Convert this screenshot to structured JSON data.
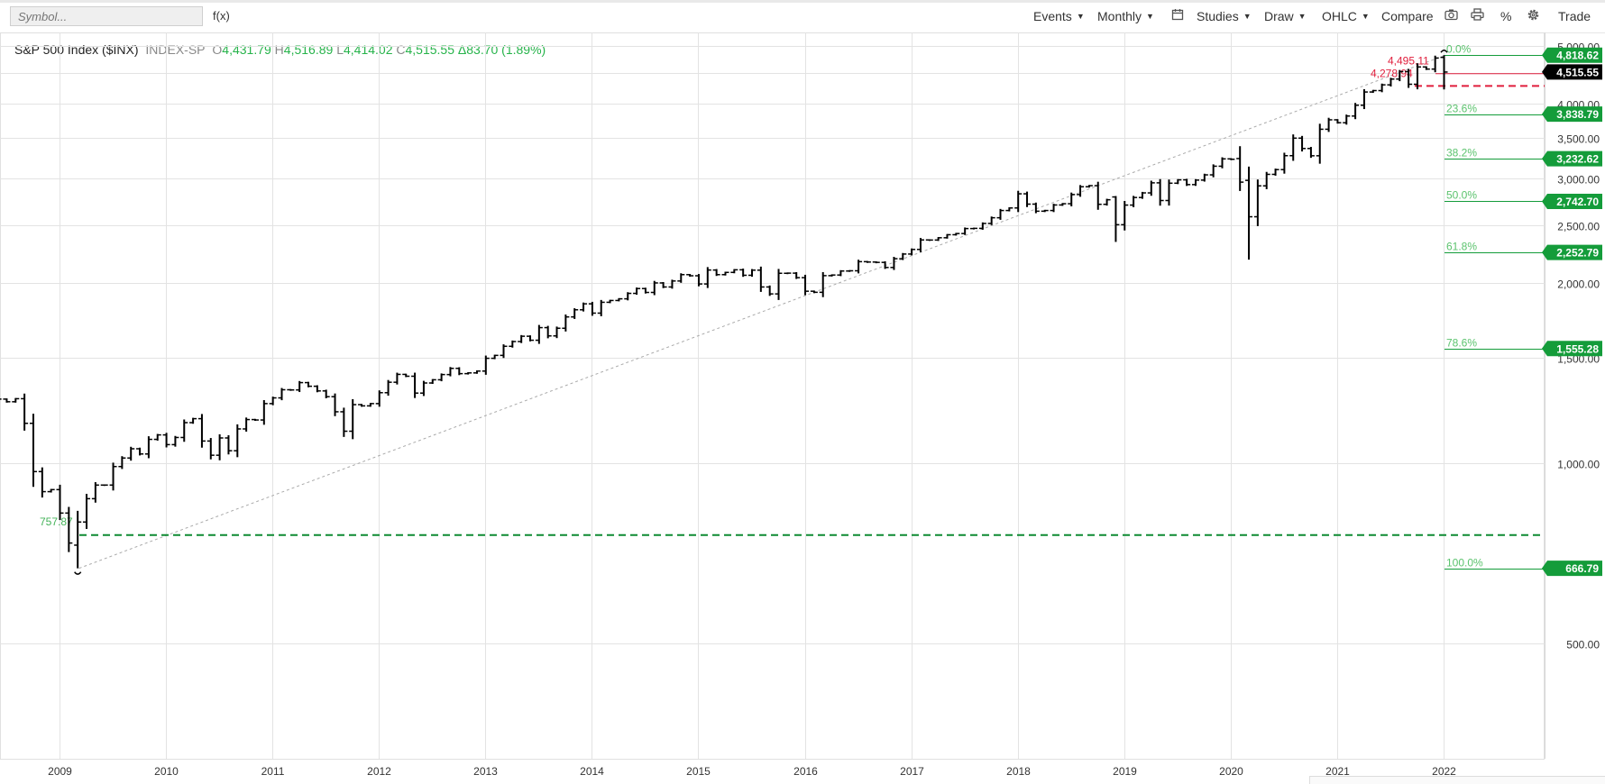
{
  "toolbar": {
    "symbol_placeholder": "Symbol...",
    "fx_label": "f(x)",
    "events_label": "Events",
    "period_label": "Monthly",
    "calendar_icon": "calendar-icon",
    "studies_label": "Studies",
    "draw_label": "Draw",
    "chart_type_label": "OHLC",
    "compare_label": "Compare",
    "camera_icon": "camera-icon",
    "print_icon": "print-icon",
    "percent_label": "%",
    "settings_icon": "gear-icon",
    "trade_label": "Trade"
  },
  "legend": {
    "name": "S&P 500 Index ($INX)",
    "exchange": "INDEX-SP",
    "open_label": "O",
    "open": "4,431.79",
    "high_label": "H",
    "high": "4,516.89",
    "low_label": "L",
    "low": "4,414.02",
    "close_label": "C",
    "close": "4,515.55",
    "change": "Δ83.70 (1.89%)"
  },
  "colors": {
    "up_text": "#26b34a",
    "fib_green": "#149c3a",
    "fib_red": "#e01e3c",
    "candle": "#000000",
    "grid": "#e3e3e3"
  },
  "chart_data": {
    "type": "ohlc",
    "period": "monthly",
    "ylim": [
      320,
      5260
    ],
    "y_ticks": [
      {
        "value": 500,
        "label": "500.00"
      },
      {
        "value": 1000,
        "label": "1,000.00"
      },
      {
        "value": 1500,
        "label": "1,500.00"
      },
      {
        "value": 2000,
        "label": "2,000.00"
      },
      {
        "value": 2500,
        "label": "2,500.00"
      },
      {
        "value": 3000,
        "label": "3,000.00"
      },
      {
        "value": 3500,
        "label": "3,500.00"
      },
      {
        "value": 4000,
        "label": "4,000.00"
      },
      {
        "value": 4500,
        "label": ""
      },
      {
        "value": 5000,
        "label": "5,000.00"
      }
    ],
    "x_ticks": [
      {
        "date": 2009.0,
        "label": "2009"
      },
      {
        "date": 2010.0,
        "label": "2010"
      },
      {
        "date": 2011.0,
        "label": "2011"
      },
      {
        "date": 2012.0,
        "label": "2012"
      },
      {
        "date": 2013.0,
        "label": "2013"
      },
      {
        "date": 2014.0,
        "label": "2014"
      },
      {
        "date": 2015.0,
        "label": "2015"
      },
      {
        "date": 2016.0,
        "label": "2016"
      },
      {
        "date": 2017.0,
        "label": "2017"
      },
      {
        "date": 2018.0,
        "label": "2018"
      },
      {
        "date": 2019.0,
        "label": "2019"
      },
      {
        "date": 2020.0,
        "label": "2020"
      },
      {
        "date": 2021.0,
        "label": "2021"
      },
      {
        "date": 2022.0,
        "label": "2022"
      }
    ],
    "closes": [
      {
        "date": "2008-05",
        "close": 1400
      },
      {
        "date": "2008-06",
        "close": 1280
      },
      {
        "date": "2008-07",
        "close": 1267
      },
      {
        "date": "2008-08",
        "close": 1282
      },
      {
        "date": "2008-09",
        "close": 1166
      },
      {
        "date": "2008-10",
        "close": 968
      },
      {
        "date": "2008-11",
        "close": 896
      },
      {
        "date": "2008-12",
        "close": 903
      },
      {
        "date": "2009-01",
        "close": 825
      },
      {
        "date": "2009-02",
        "close": 735
      },
      {
        "date": "2009-03",
        "close": 797
      },
      {
        "date": "2009-04",
        "close": 872
      },
      {
        "date": "2009-05",
        "close": 919
      },
      {
        "date": "2009-06",
        "close": 919
      },
      {
        "date": "2009-07",
        "close": 987
      },
      {
        "date": "2009-08",
        "close": 1020
      },
      {
        "date": "2009-09",
        "close": 1057
      },
      {
        "date": "2009-10",
        "close": 1036
      },
      {
        "date": "2009-11",
        "close": 1096
      },
      {
        "date": "2009-12",
        "close": 1115
      },
      {
        "date": "2010-01",
        "close": 1074
      },
      {
        "date": "2010-02",
        "close": 1104
      },
      {
        "date": "2010-03",
        "close": 1169
      },
      {
        "date": "2010-04",
        "close": 1187
      },
      {
        "date": "2010-05",
        "close": 1089
      },
      {
        "date": "2010-06",
        "close": 1031
      },
      {
        "date": "2010-07",
        "close": 1102
      },
      {
        "date": "2010-08",
        "close": 1049
      },
      {
        "date": "2010-09",
        "close": 1141
      },
      {
        "date": "2010-10",
        "close": 1183
      },
      {
        "date": "2010-11",
        "close": 1181
      },
      {
        "date": "2010-12",
        "close": 1258
      },
      {
        "date": "2011-01",
        "close": 1286
      },
      {
        "date": "2011-02",
        "close": 1327
      },
      {
        "date": "2011-03",
        "close": 1326
      },
      {
        "date": "2011-04",
        "close": 1364
      },
      {
        "date": "2011-05",
        "close": 1345
      },
      {
        "date": "2011-06",
        "close": 1321
      },
      {
        "date": "2011-07",
        "close": 1292
      },
      {
        "date": "2011-08",
        "close": 1219
      },
      {
        "date": "2011-09",
        "close": 1131
      },
      {
        "date": "2011-10",
        "close": 1253
      },
      {
        "date": "2011-11",
        "close": 1247
      },
      {
        "date": "2011-12",
        "close": 1258
      },
      {
        "date": "2012-01",
        "close": 1312
      },
      {
        "date": "2012-02",
        "close": 1366
      },
      {
        "date": "2012-03",
        "close": 1408
      },
      {
        "date": "2012-04",
        "close": 1398
      },
      {
        "date": "2012-05",
        "close": 1310
      },
      {
        "date": "2012-06",
        "close": 1362
      },
      {
        "date": "2012-07",
        "close": 1379
      },
      {
        "date": "2012-08",
        "close": 1407
      },
      {
        "date": "2012-09",
        "close": 1441
      },
      {
        "date": "2012-10",
        "close": 1412
      },
      {
        "date": "2012-11",
        "close": 1416
      },
      {
        "date": "2012-12",
        "close": 1426
      },
      {
        "date": "2013-01",
        "close": 1498
      },
      {
        "date": "2013-02",
        "close": 1515
      },
      {
        "date": "2013-03",
        "close": 1569
      },
      {
        "date": "2013-04",
        "close": 1598
      },
      {
        "date": "2013-05",
        "close": 1631
      },
      {
        "date": "2013-06",
        "close": 1606
      },
      {
        "date": "2013-07",
        "close": 1686
      },
      {
        "date": "2013-08",
        "close": 1633
      },
      {
        "date": "2013-09",
        "close": 1682
      },
      {
        "date": "2013-10",
        "close": 1757
      },
      {
        "date": "2013-11",
        "close": 1806
      },
      {
        "date": "2013-12",
        "close": 1848
      },
      {
        "date": "2014-01",
        "close": 1783
      },
      {
        "date": "2014-02",
        "close": 1859
      },
      {
        "date": "2014-03",
        "close": 1872
      },
      {
        "date": "2014-04",
        "close": 1884
      },
      {
        "date": "2014-05",
        "close": 1924
      },
      {
        "date": "2014-06",
        "close": 1960
      },
      {
        "date": "2014-07",
        "close": 1931
      },
      {
        "date": "2014-08",
        "close": 2003
      },
      {
        "date": "2014-09",
        "close": 1972
      },
      {
        "date": "2014-10",
        "close": 2018
      },
      {
        "date": "2014-11",
        "close": 2068
      },
      {
        "date": "2014-12",
        "close": 2059
      },
      {
        "date": "2015-01",
        "close": 1995
      },
      {
        "date": "2015-02",
        "close": 2105
      },
      {
        "date": "2015-03",
        "close": 2068
      },
      {
        "date": "2015-04",
        "close": 2086
      },
      {
        "date": "2015-05",
        "close": 2107
      },
      {
        "date": "2015-06",
        "close": 2063
      },
      {
        "date": "2015-07",
        "close": 2104
      },
      {
        "date": "2015-08",
        "close": 1972
      },
      {
        "date": "2015-09",
        "close": 1920
      },
      {
        "date": "2015-10",
        "close": 2079
      },
      {
        "date": "2015-11",
        "close": 2080
      },
      {
        "date": "2015-12",
        "close": 2044
      },
      {
        "date": "2016-01",
        "close": 1940
      },
      {
        "date": "2016-02",
        "close": 1932
      },
      {
        "date": "2016-03",
        "close": 2060
      },
      {
        "date": "2016-04",
        "close": 2065
      },
      {
        "date": "2016-05",
        "close": 2097
      },
      {
        "date": "2016-06",
        "close": 2099
      },
      {
        "date": "2016-07",
        "close": 2174
      },
      {
        "date": "2016-08",
        "close": 2171
      },
      {
        "date": "2016-09",
        "close": 2168
      },
      {
        "date": "2016-10",
        "close": 2126
      },
      {
        "date": "2016-11",
        "close": 2199
      },
      {
        "date": "2016-12",
        "close": 2239
      },
      {
        "date": "2017-01",
        "close": 2279
      },
      {
        "date": "2017-02",
        "close": 2364
      },
      {
        "date": "2017-03",
        "close": 2363
      },
      {
        "date": "2017-04",
        "close": 2384
      },
      {
        "date": "2017-05",
        "close": 2412
      },
      {
        "date": "2017-06",
        "close": 2423
      },
      {
        "date": "2017-07",
        "close": 2470
      },
      {
        "date": "2017-08",
        "close": 2472
      },
      {
        "date": "2017-09",
        "close": 2519
      },
      {
        "date": "2017-10",
        "close": 2575
      },
      {
        "date": "2017-11",
        "close": 2648
      },
      {
        "date": "2017-12",
        "close": 2674
      },
      {
        "date": "2018-01",
        "close": 2824
      },
      {
        "date": "2018-02",
        "close": 2714
      },
      {
        "date": "2018-03",
        "close": 2641
      },
      {
        "date": "2018-04",
        "close": 2648
      },
      {
        "date": "2018-05",
        "close": 2705
      },
      {
        "date": "2018-06",
        "close": 2718
      },
      {
        "date": "2018-07",
        "close": 2816
      },
      {
        "date": "2018-08",
        "close": 2902
      },
      {
        "date": "2018-09",
        "close": 2914
      },
      {
        "date": "2018-10",
        "close": 2712
      },
      {
        "date": "2018-11",
        "close": 2760
      },
      {
        "date": "2018-12",
        "close": 2507
      },
      {
        "date": "2019-01",
        "close": 2704
      },
      {
        "date": "2019-02",
        "close": 2784
      },
      {
        "date": "2019-03",
        "close": 2834
      },
      {
        "date": "2019-04",
        "close": 2946
      },
      {
        "date": "2019-05",
        "close": 2752
      },
      {
        "date": "2019-06",
        "close": 2942
      },
      {
        "date": "2019-07",
        "close": 2980
      },
      {
        "date": "2019-08",
        "close": 2926
      },
      {
        "date": "2019-09",
        "close": 2977
      },
      {
        "date": "2019-10",
        "close": 3038
      },
      {
        "date": "2019-11",
        "close": 3141
      },
      {
        "date": "2019-12",
        "close": 3231
      },
      {
        "date": "2020-01",
        "close": 3226
      },
      {
        "date": "2020-02",
        "close": 2954
      },
      {
        "date": "2020-03",
        "close": 2585
      },
      {
        "date": "2020-04",
        "close": 2912
      },
      {
        "date": "2020-05",
        "close": 3044
      },
      {
        "date": "2020-06",
        "close": 3100
      },
      {
        "date": "2020-07",
        "close": 3271
      },
      {
        "date": "2020-08",
        "close": 3500
      },
      {
        "date": "2020-09",
        "close": 3363
      },
      {
        "date": "2020-10",
        "close": 3270
      },
      {
        "date": "2020-11",
        "close": 3622
      },
      {
        "date": "2020-12",
        "close": 3756
      },
      {
        "date": "2021-01",
        "close": 3714
      },
      {
        "date": "2021-02",
        "close": 3811
      },
      {
        "date": "2021-03",
        "close": 3973
      },
      {
        "date": "2021-04",
        "close": 4181
      },
      {
        "date": "2021-05",
        "close": 4204
      },
      {
        "date": "2021-06",
        "close": 4298
      },
      {
        "date": "2021-07",
        "close": 4395
      },
      {
        "date": "2021-08",
        "close": 4523
      },
      {
        "date": "2021-09",
        "close": 4308
      },
      {
        "date": "2021-10",
        "close": 4605
      },
      {
        "date": "2021-11",
        "close": 4567
      },
      {
        "date": "2021-12",
        "close": 4766
      },
      {
        "date": "2022-01",
        "close": 4516
      }
    ],
    "special_bars": [
      {
        "date": "2009-03",
        "open": 729,
        "high": 832,
        "low": 666.79,
        "close": 797
      },
      {
        "date": "2018-12",
        "open": 2790,
        "high": 2800,
        "low": 2346,
        "close": 2507
      },
      {
        "date": "2020-02",
        "open": 3235,
        "high": 3393,
        "low": 2855,
        "close": 2954
      },
      {
        "date": "2020-03",
        "open": 2974,
        "high": 3136,
        "low": 2191,
        "close": 2585
      },
      {
        "date": "2022-01",
        "open": 4778,
        "high": 4818.62,
        "low": 4222.62,
        "close": 4515.55
      }
    ],
    "fibonacci": {
      "low": 666.79,
      "high": 4818.62,
      "levels": [
        {
          "pct": "0.0%",
          "value": 4818.62,
          "label": "4,818.62"
        },
        {
          "pct": "23.6%",
          "value": 3838.79,
          "label": "3,838.79"
        },
        {
          "pct": "38.2%",
          "value": 3232.62,
          "label": "3,232.62"
        },
        {
          "pct": "50.0%",
          "value": 2742.7,
          "label": "2,742.70"
        },
        {
          "pct": "61.8%",
          "value": 2252.79,
          "label": "2,252.79"
        },
        {
          "pct": "78.6%",
          "value": 1555.28,
          "label": "1,555.28"
        },
        {
          "pct": "100.0%",
          "value": 666.79,
          "label": "666.79"
        }
      ]
    },
    "current_price": {
      "value": 4515.55,
      "label": "4,515.55"
    },
    "annotations": {
      "green_line": {
        "value": 757.87,
        "label": "757.87"
      },
      "red_level_1": {
        "value": 4495.11,
        "label": "4,495.11"
      },
      "red_level_2": {
        "value": 4278.94,
        "label": "4,278.94"
      }
    }
  }
}
